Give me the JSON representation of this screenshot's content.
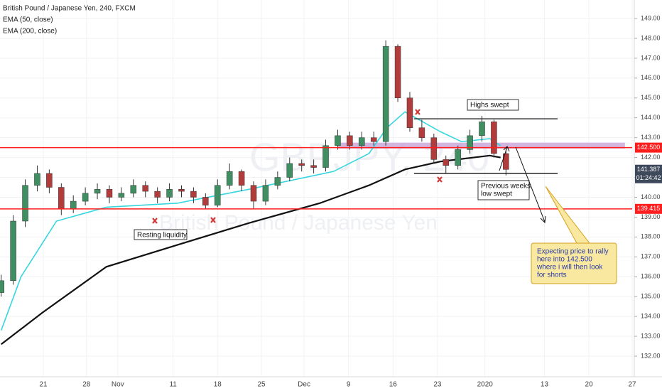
{
  "chart_data": {
    "type": "candlestick",
    "title": "British Pound / Japanese Yen, 240, FXCM",
    "indicators": [
      "EMA (50, close)",
      "EMA (200, close)"
    ],
    "watermark": [
      "GBPJPY, 240",
      "British Pound / Japanese Yen"
    ],
    "up_color": "#3f8f62",
    "down_color": "#b23b3b",
    "xlim": [
      -0.2,
      105
    ],
    "ylim": [
      130.962,
      149.931
    ],
    "yticks": [
      {
        "value": 132,
        "label": "132.00"
      },
      {
        "value": 133,
        "label": "133.00"
      },
      {
        "value": 134,
        "label": "134.00"
      },
      {
        "value": 135,
        "label": "135.00"
      },
      {
        "value": 136,
        "label": "136.00"
      },
      {
        "value": 137,
        "label": "137.00"
      },
      {
        "value": 138,
        "label": "138.00"
      },
      {
        "value": 139,
        "label": "139.00"
      },
      {
        "value": 140,
        "label": "140.00"
      },
      {
        "value": 141,
        "label": "141.00"
      },
      {
        "value": 142,
        "label": "142.00"
      },
      {
        "value": 143,
        "label": "143.00"
      },
      {
        "value": 144,
        "label": "144.00"
      },
      {
        "value": 145,
        "label": "145.00"
      },
      {
        "value": 146,
        "label": "146.00"
      },
      {
        "value": 147,
        "label": "147.00"
      },
      {
        "value": 148,
        "label": "148.00"
      },
      {
        "value": 149,
        "label": "149.00"
      }
    ],
    "xticks": [
      {
        "value": 7,
        "label": "21"
      },
      {
        "value": 14.2,
        "label": "28"
      },
      {
        "value": 19.4,
        "label": "Nov"
      },
      {
        "value": 28.6,
        "label": "11"
      },
      {
        "value": 36,
        "label": "18"
      },
      {
        "value": 43.3,
        "label": "25"
      },
      {
        "value": 50.4,
        "label": "Dec"
      },
      {
        "value": 57.8,
        "label": "9"
      },
      {
        "value": 65.2,
        "label": "16"
      },
      {
        "value": 72.6,
        "label": "23"
      },
      {
        "value": 80.5,
        "label": "2020"
      },
      {
        "value": 90.4,
        "label": "13"
      },
      {
        "value": 97.8,
        "label": "20"
      },
      {
        "value": 105,
        "label": "27"
      }
    ],
    "candles": [
      [
        0,
        135.2,
        136.1,
        135.0,
        135.8
      ],
      [
        2,
        135.8,
        139.1,
        135.6,
        138.8
      ],
      [
        4,
        138.8,
        140.9,
        138.5,
        140.6
      ],
      [
        6,
        140.6,
        141.6,
        140.3,
        141.2
      ],
      [
        8,
        141.2,
        141.4,
        140.2,
        140.5
      ],
      [
        10,
        140.5,
        140.7,
        139.1,
        139.4
      ],
      [
        12,
        139.4,
        140.1,
        139.2,
        139.8
      ],
      [
        14,
        139.8,
        140.5,
        139.6,
        140.2
      ],
      [
        16,
        140.2,
        140.7,
        139.9,
        140.4
      ],
      [
        18,
        140.4,
        140.6,
        139.7,
        140.0
      ],
      [
        20,
        140.0,
        140.5,
        139.8,
        140.2
      ],
      [
        22,
        140.2,
        140.9,
        140.0,
        140.6
      ],
      [
        24,
        140.6,
        140.8,
        140.0,
        140.3
      ],
      [
        26,
        140.3,
        140.5,
        139.7,
        140.0
      ],
      [
        28,
        140.0,
        140.7,
        139.8,
        140.4
      ],
      [
        30,
        140.4,
        140.6,
        140.0,
        140.3
      ],
      [
        32,
        140.3,
        140.5,
        139.7,
        140.0
      ],
      [
        34,
        140.0,
        140.2,
        139.4,
        139.6
      ],
      [
        36,
        139.6,
        140.9,
        139.5,
        140.6
      ],
      [
        38,
        140.6,
        141.7,
        140.4,
        141.3
      ],
      [
        40,
        141.3,
        141.4,
        140.3,
        140.6
      ],
      [
        42,
        140.6,
        140.8,
        139.4,
        139.8
      ],
      [
        44,
        139.8,
        140.9,
        139.6,
        140.6
      ],
      [
        46,
        140.6,
        141.3,
        140.4,
        141.0
      ],
      [
        48,
        141.0,
        142.0,
        140.8,
        141.7
      ],
      [
        50,
        141.7,
        141.9,
        141.3,
        141.6
      ],
      [
        52,
        141.6,
        141.9,
        141.2,
        141.5
      ],
      [
        54,
        141.5,
        142.9,
        141.3,
        142.6
      ],
      [
        56,
        142.6,
        143.4,
        142.4,
        143.1
      ],
      [
        58,
        143.1,
        143.3,
        142.4,
        142.6
      ],
      [
        60,
        142.6,
        143.3,
        142.4,
        143.0
      ],
      [
        62,
        143.0,
        143.3,
        142.6,
        142.8
      ],
      [
        64,
        142.8,
        147.9,
        142.6,
        147.6
      ],
      [
        66,
        147.6,
        147.7,
        144.8,
        145.0
      ],
      [
        68,
        145.0,
        145.3,
        143.3,
        143.5
      ],
      [
        70,
        143.5,
        143.9,
        142.8,
        143.0
      ],
      [
        72,
        143.0,
        143.2,
        141.7,
        141.9
      ],
      [
        74,
        141.9,
        142.1,
        141.2,
        141.6
      ],
      [
        76,
        141.6,
        142.6,
        141.4,
        142.4
      ],
      [
        78,
        142.4,
        143.4,
        142.2,
        143.1
      ],
      [
        80,
        143.1,
        144.1,
        142.8,
        143.8
      ],
      [
        82,
        143.8,
        143.9,
        142.0,
        142.2
      ],
      [
        84,
        142.2,
        142.4,
        141.1,
        141.4
      ]
    ],
    "series": [
      {
        "name": "EMA (50, close)",
        "color": "#35d6e0",
        "x": [
          0,
          3.3,
          9.2,
          17.5,
          29.3,
          41.2,
          50.6,
          55.3,
          61.2,
          64.2,
          67.2,
          73.1,
          76.6,
          81.3,
          83.1
        ],
        "values": [
          133.3,
          136.0,
          138.8,
          139.5,
          139.7,
          140.4,
          141.0,
          141.3,
          142.2,
          143.5,
          144.3,
          143.3,
          142.8,
          142.95,
          142.6
        ]
      },
      {
        "name": "EMA (200, close)",
        "color": "#111111",
        "x": [
          0,
          6.9,
          17.5,
          29.3,
          41.2,
          53.0,
          61.2,
          67.2,
          73.1,
          81.3,
          83.1
        ],
        "values": [
          132.6,
          134.2,
          136.5,
          137.6,
          138.7,
          139.7,
          140.6,
          141.4,
          141.8,
          142.1,
          142.0
        ]
      }
    ],
    "levels": [
      {
        "value": 142.5,
        "label": "142.500",
        "color": "#ff1e1e"
      },
      {
        "value": 139.415,
        "label": "139.415",
        "color": "#ff1e1e"
      }
    ],
    "last_price": {
      "value": 141.387,
      "label": "141.387",
      "countdown": "01:24:42"
    },
    "zone": {
      "values": [
        142.45,
        142.75
      ],
      "x": [
        56,
        103.8
      ],
      "color": "#c9a2d6"
    },
    "swept_lines": [
      {
        "value": 143.95,
        "x": [
          68.7,
          92.6
        ]
      },
      {
        "value": 141.2,
        "x": [
          68.7,
          92.6
        ]
      }
    ],
    "annotations": {
      "highs": "Highs swept",
      "lows": [
        "Previous weeks",
        "low swept"
      ],
      "resting": "Resting liquidity",
      "callout": [
        "Expecting price to rally",
        "here into 142.500",
        "where i will then look",
        "for shorts"
      ]
    }
  }
}
